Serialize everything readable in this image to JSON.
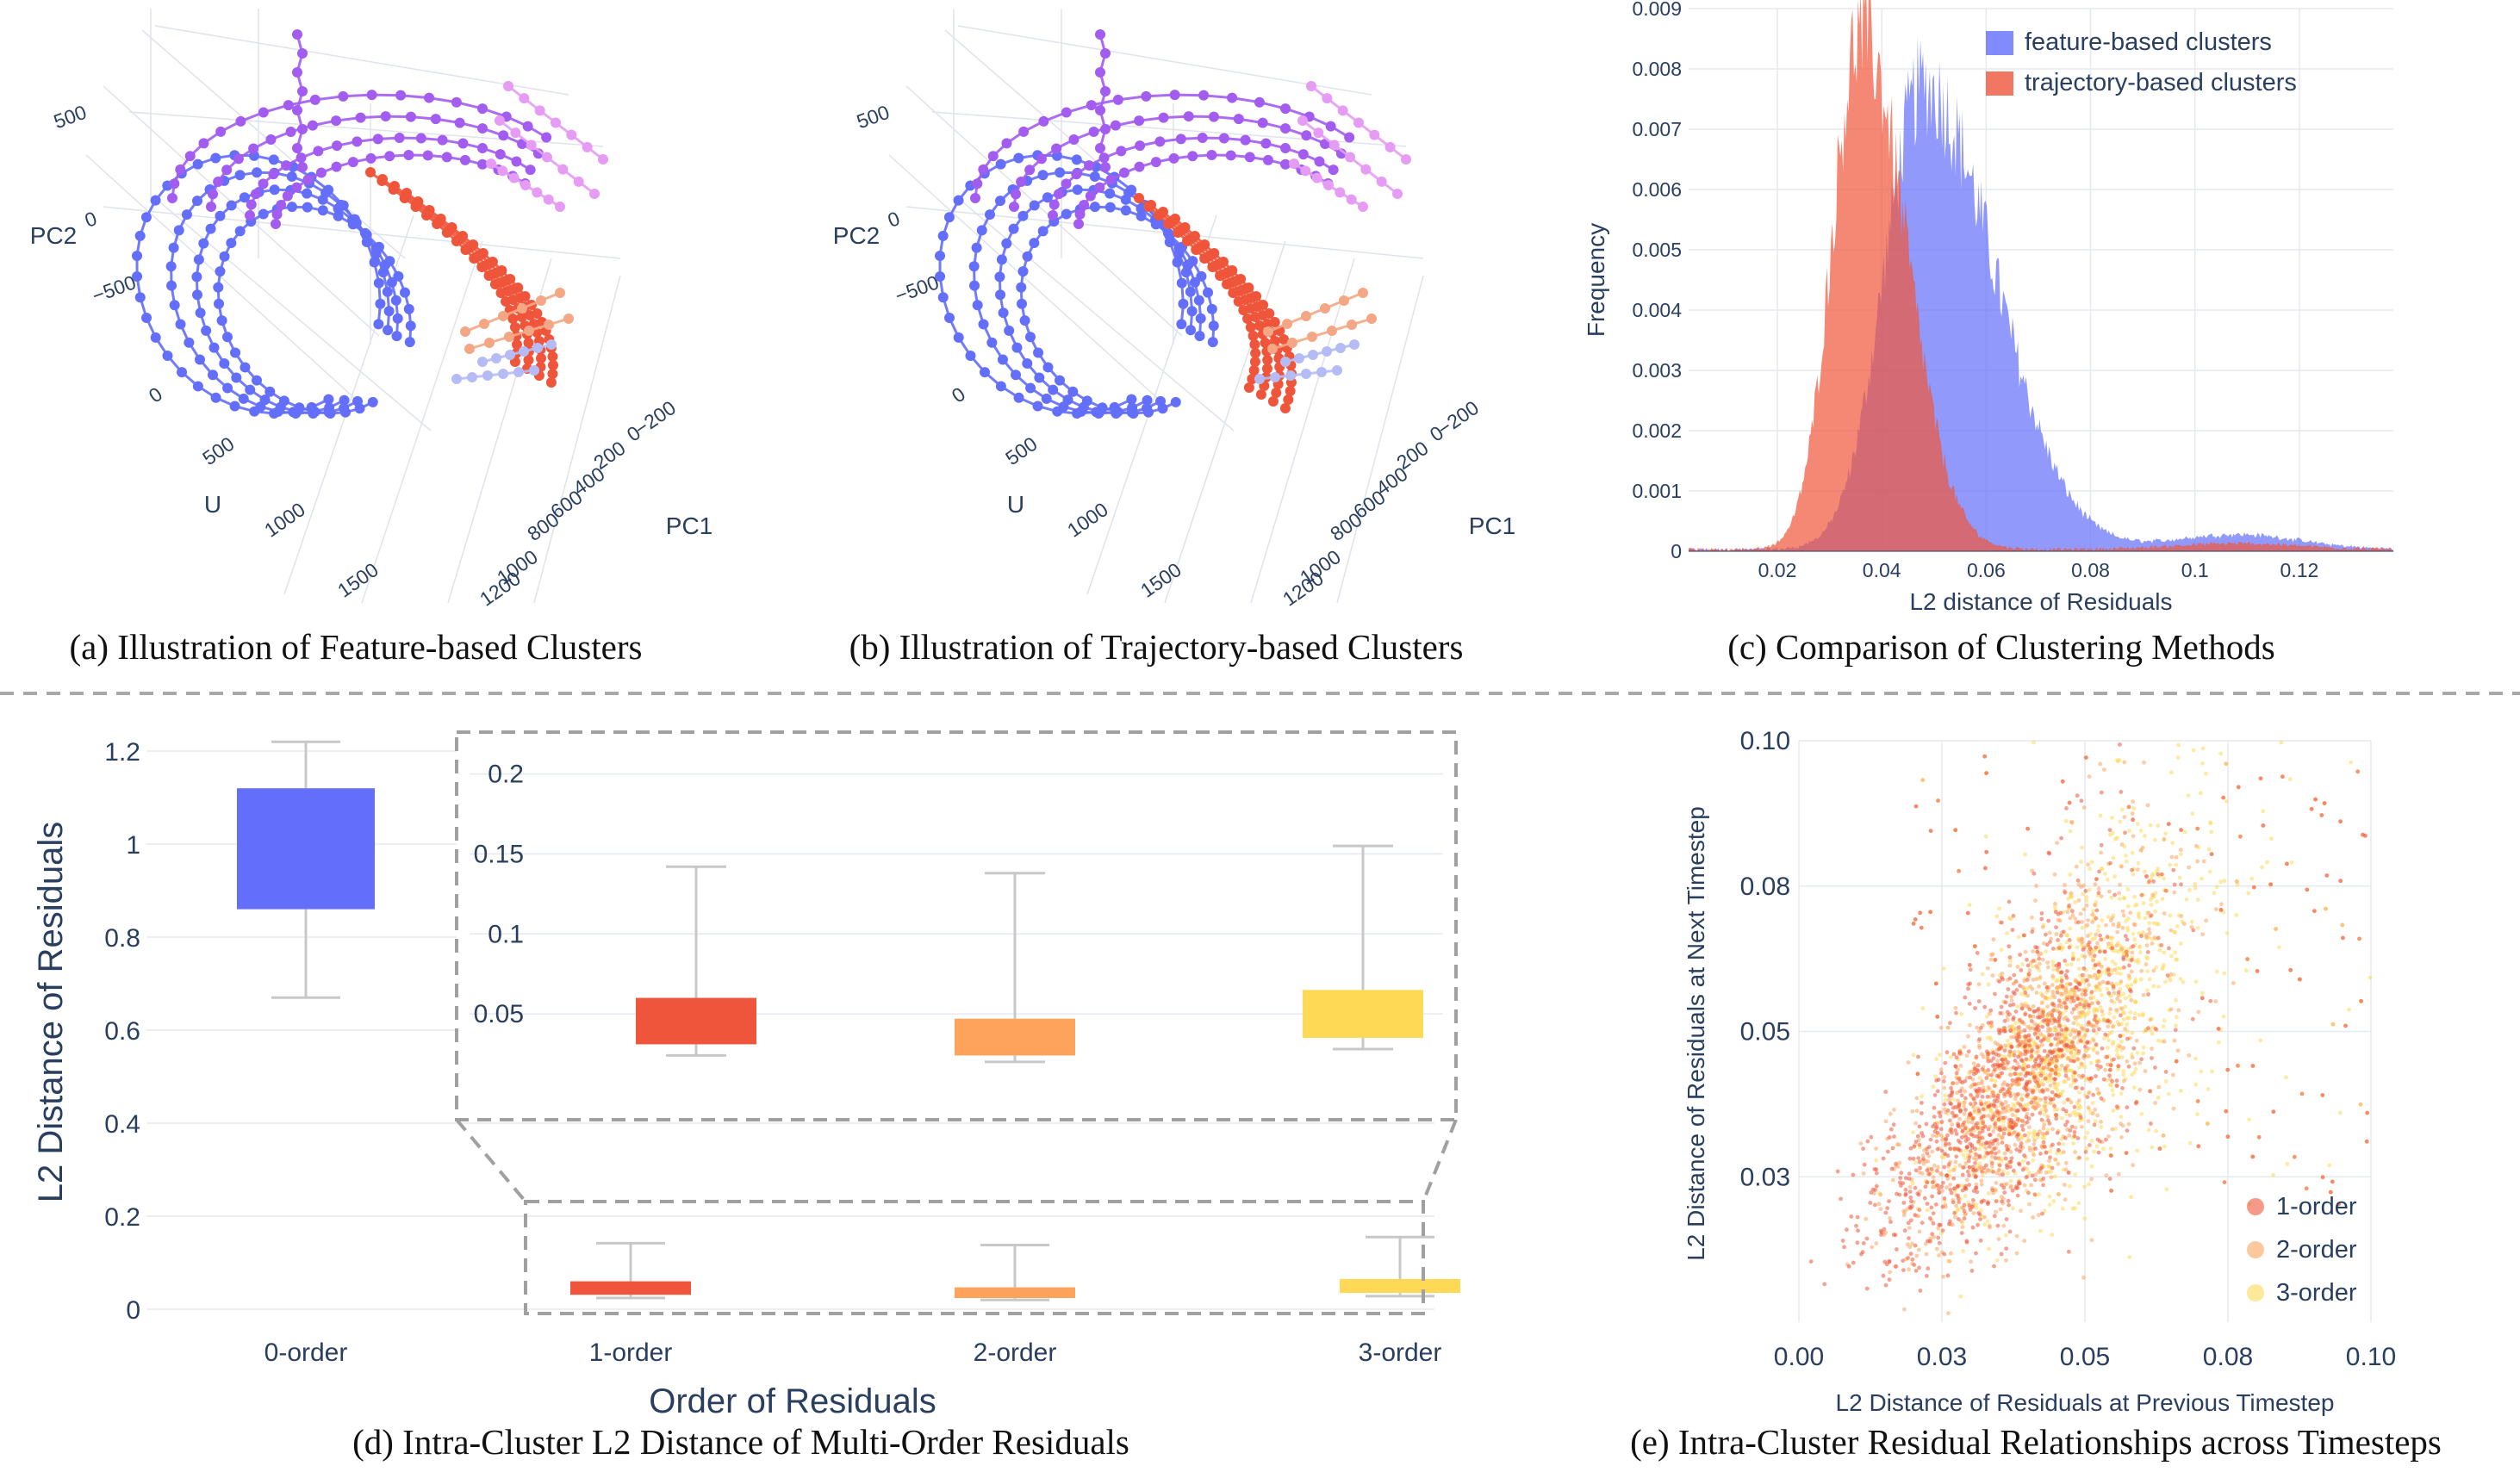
{
  "captions": {
    "a": "(a) Illustration of Feature-based Clusters",
    "b": "(b) Illustration of Trajectory-based Clusters",
    "c": "(c) Comparison of Clustering Methods",
    "d": "(d) Intra-Cluster L2 Distance of Multi-Order Residuals",
    "e": "(e) Intra-Cluster Residual Relationships across Timesteps"
  },
  "colors": {
    "blue": "#636efa",
    "purple": "#a35cf0",
    "pink": "#e69cf5",
    "red": "#ef553b",
    "orange": "#fda35c",
    "yellow": "#fed956",
    "grid": "#e5e9f0"
  },
  "chart_data": [
    {
      "id": "a",
      "type": "scatter",
      "projection": "3d",
      "axes": {
        "x": {
          "label": "U",
          "ticks": [
            "0",
            "500",
            "1000",
            "1500"
          ]
        },
        "y": {
          "label": "PC1",
          "ticks": [
            "−200",
            "0",
            "200",
            "400",
            "600",
            "800",
            "1000",
            "1200"
          ]
        },
        "z": {
          "label": "PC2",
          "ticks": [
            "500",
            "0",
            "−500"
          ]
        }
      },
      "series": [
        {
          "color": "#636efa",
          "values": [
            [
              160,
              -300,
              -100
            ],
            [
              600,
              200,
              -600
            ],
            [
              1400,
              300,
              -900
            ],
            [
              1700,
              700,
              -300
            ],
            [
              1200,
              900,
              200
            ],
            [
              400,
              600,
              350
            ]
          ]
        },
        {
          "color": "#a35cf0",
          "values": [
            [
              300,
              500,
              300
            ],
            [
              500,
              700,
              600
            ],
            [
              700,
              900,
              650
            ],
            [
              900,
              1000,
              620
            ]
          ]
        },
        {
          "color": "#ef553b",
          "values": [
            [
              700,
              800,
              200
            ],
            [
              1000,
              600,
              -100
            ],
            [
              1300,
              500,
              -500
            ],
            [
              1500,
              500,
              -800
            ]
          ]
        }
      ]
    },
    {
      "id": "b",
      "type": "scatter",
      "projection": "3d",
      "axes": {
        "x": {
          "label": "U",
          "ticks": [
            "0",
            "500",
            "1000",
            "1500"
          ]
        },
        "y": {
          "label": "PC1",
          "ticks": [
            "−200",
            "0",
            "200",
            "400",
            "600",
            "800",
            "1000",
            "1200"
          ]
        },
        "z": {
          "label": "PC2",
          "ticks": [
            "500",
            "0",
            "−500"
          ]
        }
      },
      "series": [
        {
          "color": "#636efa",
          "values": [
            [
              160,
              -300,
              -100
            ],
            [
              600,
              200,
              -600
            ],
            [
              1400,
              300,
              -900
            ],
            [
              1700,
              700,
              -300
            ],
            [
              1200,
              900,
              200
            ]
          ]
        },
        {
          "color": "#a35cf0",
          "values": [
            [
              300,
              500,
              300
            ],
            [
              500,
              700,
              600
            ],
            [
              700,
              900,
              650
            ],
            [
              900,
              1000,
              620
            ]
          ]
        },
        {
          "color": "#ef553b",
          "values": [
            [
              500,
              600,
              100
            ],
            [
              900,
              700,
              -100
            ],
            [
              1300,
              500,
              -500
            ],
            [
              1500,
              500,
              -800
            ]
          ]
        }
      ]
    },
    {
      "id": "c",
      "type": "histogram",
      "xlabel": "L2 distance of Residuals",
      "ylabel": "Frequency",
      "xlim": [
        0.003,
        0.138
      ],
      "ylim": [
        0,
        0.009
      ],
      "xticks": [
        "0.02",
        "0.04",
        "0.06",
        "0.08",
        "0.1",
        "0.12"
      ],
      "yticks": [
        "0",
        "0.001",
        "0.002",
        "0.003",
        "0.004",
        "0.005",
        "0.006",
        "0.007",
        "0.008",
        "0.009"
      ],
      "legend_position": "top-right",
      "series": [
        {
          "name": "feature-based clusters",
          "color": "#636efa",
          "opacity": 0.7,
          "peak_x": 0.048,
          "peak_y": 0.0077
        },
        {
          "name": "trajectory-based clusters",
          "color": "#ef553b",
          "opacity": 0.7,
          "peak_x": 0.036,
          "peak_y": 0.0086
        }
      ]
    },
    {
      "id": "d",
      "type": "box",
      "xlabel": "Order of Residuals",
      "ylabel": "L2 Distance of Residuals",
      "ylim": [
        0,
        1.25
      ],
      "yticks": [
        "0",
        "0.2",
        "0.4",
        "0.6",
        "0.8",
        "1",
        "1.2"
      ],
      "categories": [
        "0-order",
        "1-order",
        "2-order",
        "3-order"
      ],
      "boxes": [
        {
          "category": "0-order",
          "color": "#636efa",
          "min": 0.67,
          "q1": 0.86,
          "q3": 1.12,
          "max": 1.22
        },
        {
          "category": "1-order",
          "color": "#ef553b",
          "min": 0.024,
          "q1": 0.031,
          "q3": 0.06,
          "max": 0.142
        },
        {
          "category": "2-order",
          "color": "#fda35c",
          "min": 0.02,
          "q1": 0.024,
          "q3": 0.047,
          "max": 0.138
        },
        {
          "category": "3-order",
          "color": "#fed956",
          "min": 0.028,
          "q1": 0.035,
          "q3": 0.065,
          "max": 0.155
        }
      ],
      "inset": {
        "ylim": [
          0,
          0.21
        ],
        "yticks": [
          "0.05",
          "0.1",
          "0.15",
          "0.2"
        ]
      }
    },
    {
      "id": "e",
      "type": "scatter",
      "xlabel": "L2 Distance of Residuals at Previous Timestep",
      "ylabel": "L2 Distance of Residuals at Next Timestep",
      "xlim": [
        0.0,
        0.1
      ],
      "ylim": [
        0.0,
        0.1
      ],
      "xticks": [
        "0.00",
        "0.03",
        "0.05",
        "0.08",
        "0.10"
      ],
      "yticks": [
        "0.03",
        "0.05",
        "0.08",
        "0.10"
      ],
      "legend_position": "bottom-right",
      "series": [
        {
          "name": "1-order",
          "color": "#ef553b",
          "center": [
            0.036,
            0.04
          ]
        },
        {
          "name": "2-order",
          "color": "#fda35c",
          "center": [
            0.04,
            0.042
          ]
        },
        {
          "name": "3-order",
          "color": "#fed956",
          "center": [
            0.048,
            0.048
          ]
        }
      ]
    }
  ]
}
